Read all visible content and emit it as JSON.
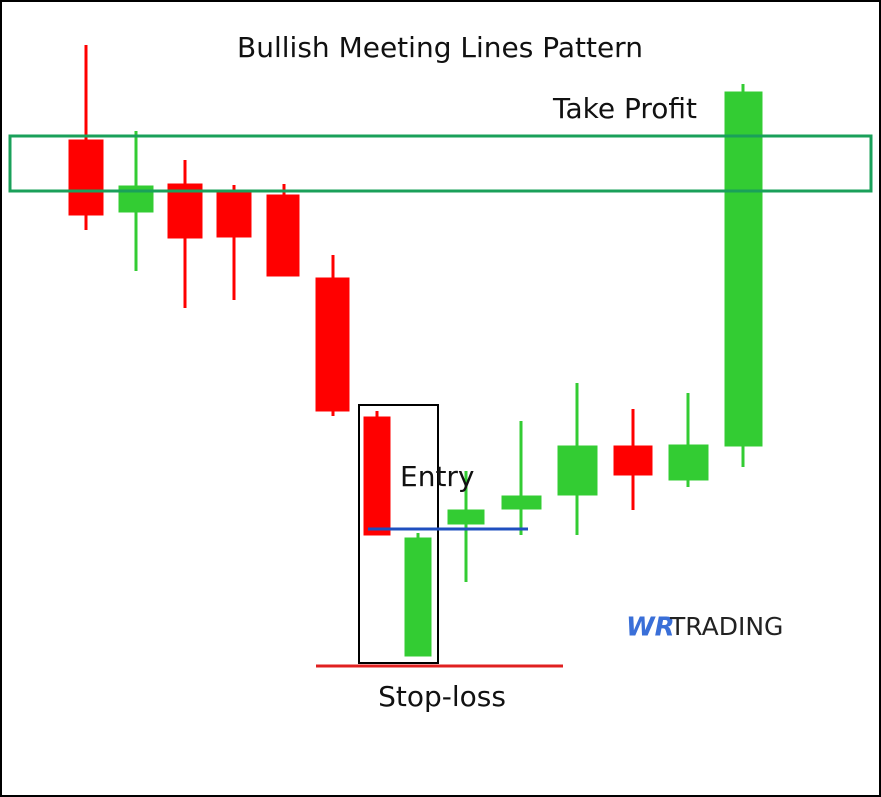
{
  "title": "Bullish Meeting Lines Pattern",
  "labels": {
    "take_profit": "Take Profit",
    "entry": "Entry",
    "stop_loss": "Stop-loss"
  },
  "logo": {
    "mark": "WR",
    "text": "TRADING"
  }
}
